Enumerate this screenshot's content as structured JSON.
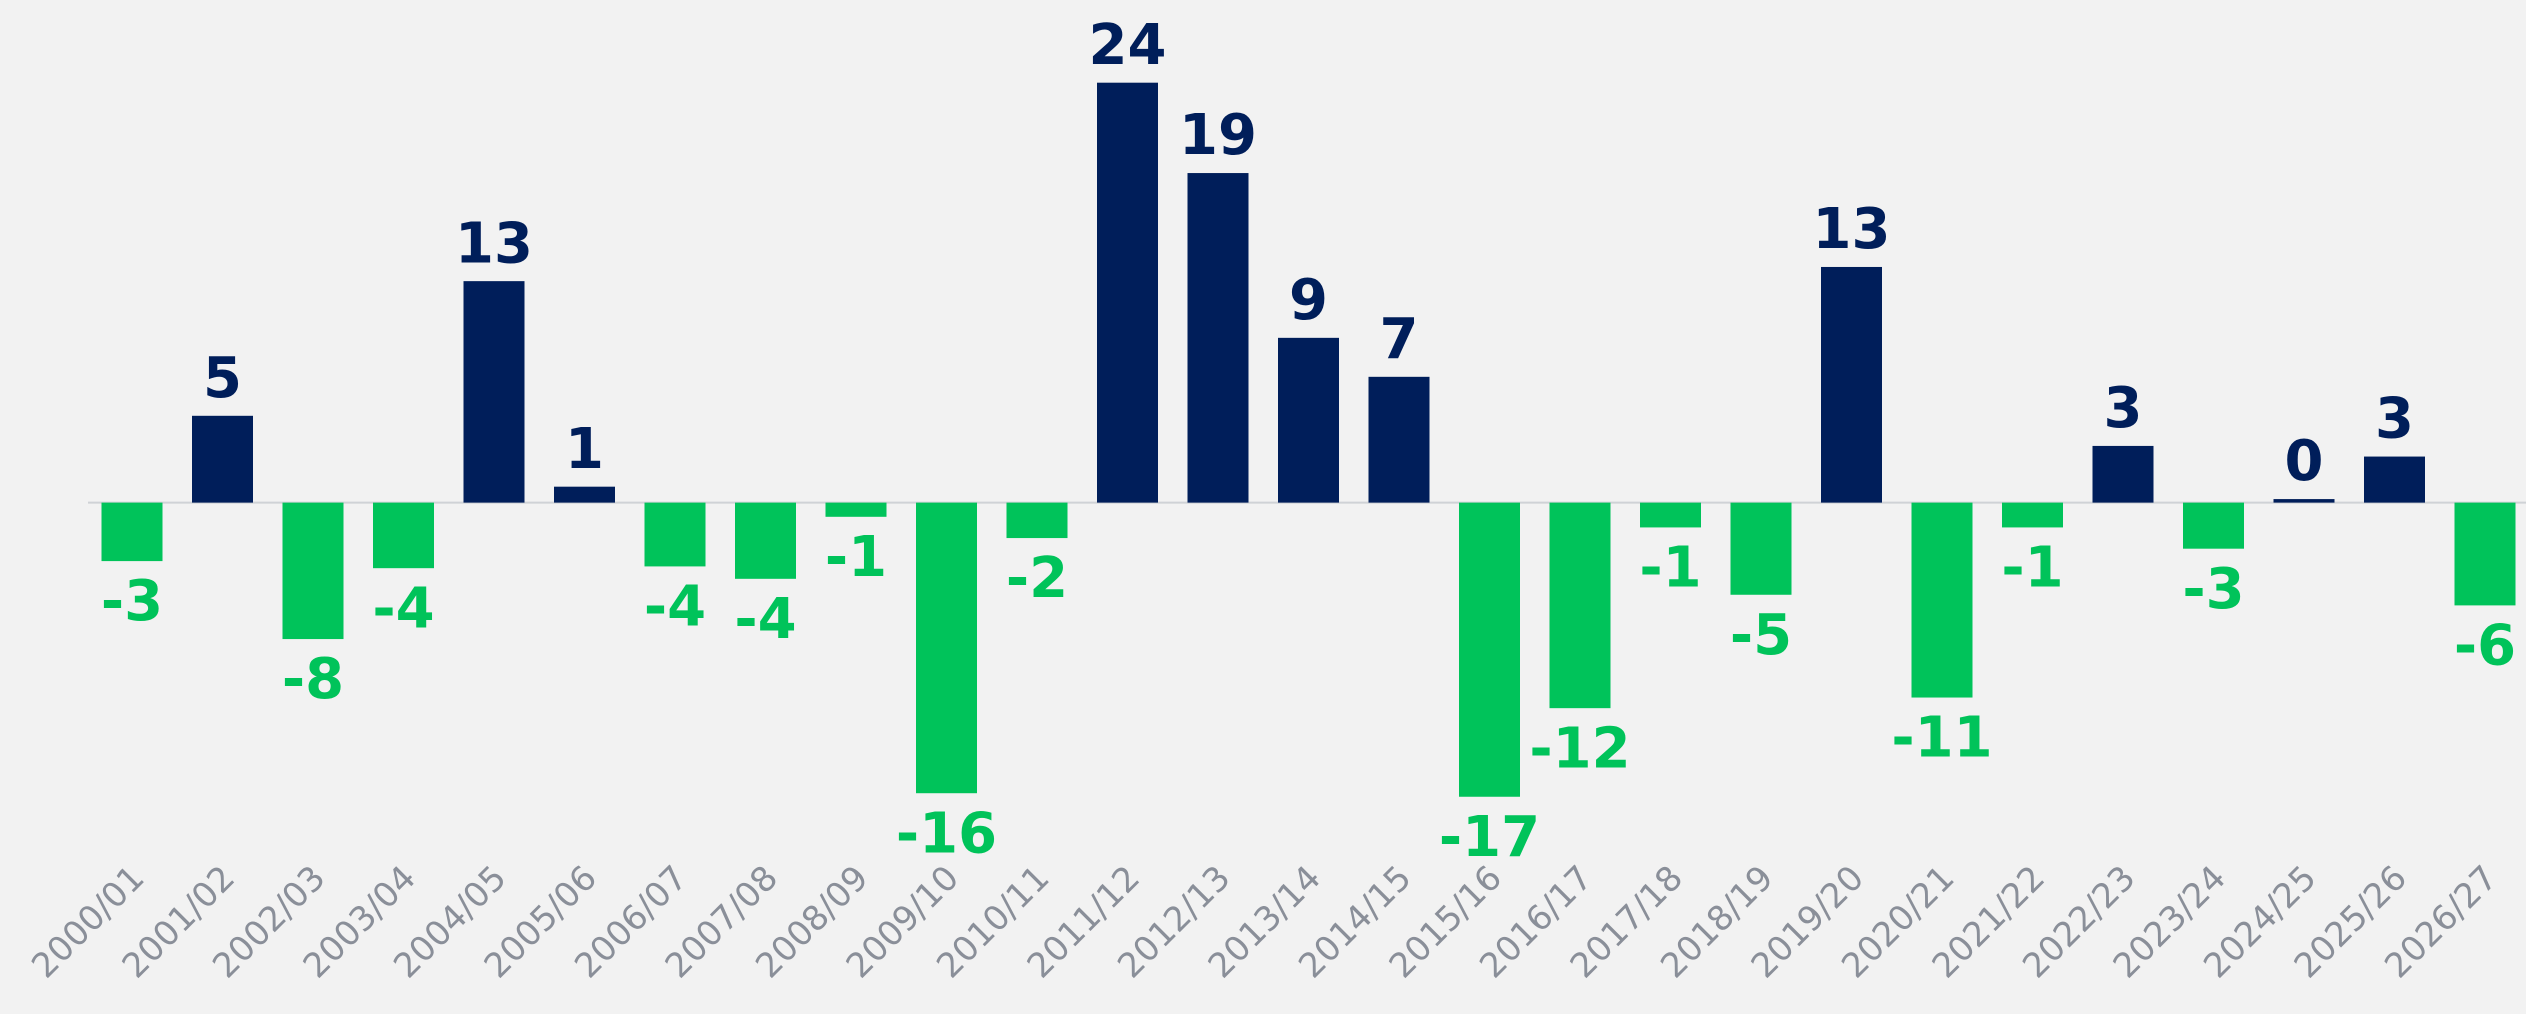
{
  "chart_data": {
    "type": "bar",
    "categories": [
      "2000/01",
      "2001/02",
      "2002/03",
      "2003/04",
      "2004/05",
      "2005/06",
      "2006/07",
      "2007/08",
      "2008/09",
      "2009/10",
      "2010/11",
      "2011/12",
      "2012/13",
      "2013/14",
      "2014/15",
      "2015/16",
      "2016/17",
      "2017/18",
      "2018/19",
      "2019/20",
      "2020/21",
      "2021/22",
      "2022/23",
      "2023/24",
      "2024/25",
      "2025/26",
      "2026/27"
    ],
    "values": [
      -3.3,
      4.9,
      -7.7,
      -3.7,
      12.5,
      0.9,
      -3.6,
      -4.3,
      -0.8,
      -16.4,
      -2.0,
      23.7,
      18.6,
      9.3,
      7.1,
      -16.6,
      -11.6,
      -1.4,
      -5.2,
      13.3,
      -11.0,
      -1.4,
      3.2,
      -2.6,
      0.2,
      2.6,
      -5.8
    ],
    "value_labels": [
      "-3",
      "5",
      "-8",
      "-4",
      "13",
      "1",
      "-4",
      "-4",
      "-1",
      "-16",
      "-2",
      "24",
      "19",
      "9",
      "7",
      "-17",
      "-12",
      "-1",
      "-5",
      "13",
      "-11",
      "-1",
      "3",
      "-3",
      "0",
      "3",
      "-6"
    ],
    "color_positive": "#001e5a",
    "color_negative": "#00c35a",
    "ylim": [
      -20,
      28
    ]
  }
}
